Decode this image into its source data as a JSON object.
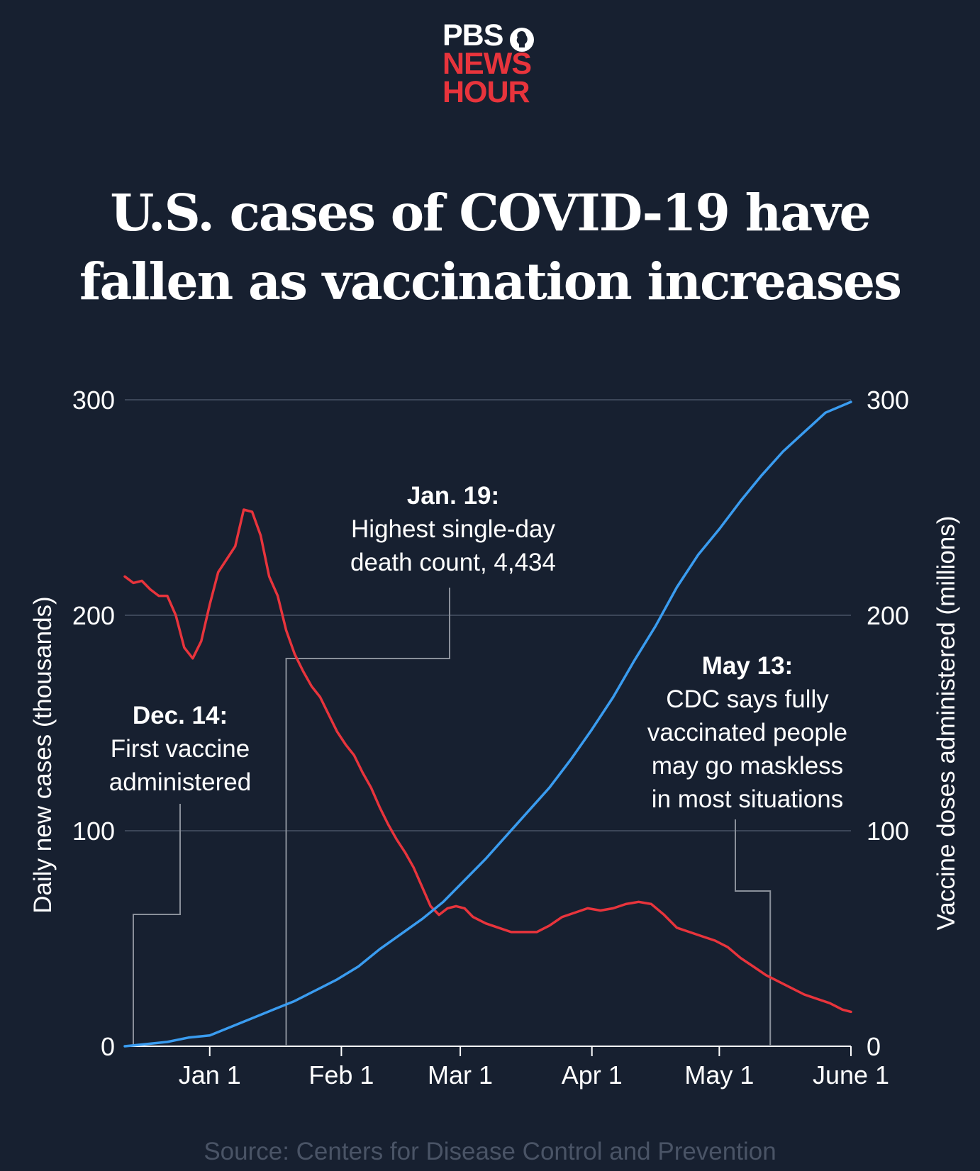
{
  "logo": {
    "line1": "PBS",
    "line2": "NEWS",
    "line3": "HOUR"
  },
  "title_line1": "U.S. cases of COVID-19 have",
  "title_line2": "fallen as vaccination increases",
  "source": "Source: Centers for Disease Control and Prevention",
  "colors": {
    "background": "#172030",
    "cases": "#e8343c",
    "vaccines": "#3a9cf0",
    "grid": "#3c4658",
    "connector": "#8a909a",
    "logo_red": "#e8343c"
  },
  "chart_data": {
    "type": "line",
    "x_tick_labels": [
      "Jan 1",
      "Feb 1",
      "Mar 1",
      "Apr 1",
      "May 1",
      "June 1"
    ],
    "x_ticks": [
      "2021-01-01",
      "2021-02-01",
      "2021-03-01",
      "2021-04-01",
      "2021-05-01",
      "2021-06-01"
    ],
    "x_range": [
      "2020-12-12",
      "2021-06-01"
    ],
    "ylabel_left": "Daily new cases (thousands)",
    "ylabel_right": "Vaccine doses administered (millions)",
    "ylim_left": [
      0,
      300
    ],
    "ylim_right": [
      0,
      300
    ],
    "y_ticks": [
      0,
      100,
      200,
      300
    ],
    "grid": true,
    "series": [
      {
        "axis": "left",
        "points": [
          [
            "2020-12-12",
            218
          ],
          [
            "2020-12-14",
            215
          ],
          [
            "2020-12-16",
            216
          ],
          [
            "2020-12-18",
            212
          ],
          [
            "2020-12-20",
            209
          ],
          [
            "2020-12-22",
            209
          ],
          [
            "2020-12-24",
            200
          ],
          [
            "2020-12-26",
            185
          ],
          [
            "2020-12-28",
            180
          ],
          [
            "2020-12-30",
            188
          ],
          [
            "2021-01-01",
            205
          ],
          [
            "2021-01-03",
            220
          ],
          [
            "2021-01-05",
            226
          ],
          [
            "2021-01-07",
            232
          ],
          [
            "2021-01-09",
            249
          ],
          [
            "2021-01-11",
            248
          ],
          [
            "2021-01-13",
            237
          ],
          [
            "2021-01-15",
            218
          ],
          [
            "2021-01-17",
            209
          ],
          [
            "2021-01-19",
            193
          ],
          [
            "2021-01-21",
            182
          ],
          [
            "2021-01-23",
            174
          ],
          [
            "2021-01-25",
            167
          ],
          [
            "2021-01-27",
            162
          ],
          [
            "2021-01-29",
            154
          ],
          [
            "2021-01-31",
            146
          ],
          [
            "2021-02-02",
            140
          ],
          [
            "2021-02-04",
            135
          ],
          [
            "2021-02-06",
            127
          ],
          [
            "2021-02-08",
            120
          ],
          [
            "2021-02-10",
            111
          ],
          [
            "2021-02-12",
            103
          ],
          [
            "2021-02-14",
            96
          ],
          [
            "2021-02-16",
            90
          ],
          [
            "2021-02-18",
            83
          ],
          [
            "2021-02-20",
            74
          ],
          [
            "2021-02-22",
            65
          ],
          [
            "2021-02-24",
            61
          ],
          [
            "2021-02-26",
            64
          ],
          [
            "2021-02-28",
            65
          ],
          [
            "2021-03-02",
            64
          ],
          [
            "2021-03-04",
            60
          ],
          [
            "2021-03-07",
            57
          ],
          [
            "2021-03-10",
            55
          ],
          [
            "2021-03-13",
            53
          ],
          [
            "2021-03-16",
            53
          ],
          [
            "2021-03-19",
            53
          ],
          [
            "2021-03-22",
            56
          ],
          [
            "2021-03-25",
            60
          ],
          [
            "2021-03-28",
            62
          ],
          [
            "2021-03-31",
            64
          ],
          [
            "2021-04-03",
            63
          ],
          [
            "2021-04-06",
            64
          ],
          [
            "2021-04-09",
            66
          ],
          [
            "2021-04-12",
            67
          ],
          [
            "2021-04-15",
            66
          ],
          [
            "2021-04-18",
            61
          ],
          [
            "2021-04-21",
            55
          ],
          [
            "2021-04-24",
            53
          ],
          [
            "2021-04-27",
            51
          ],
          [
            "2021-04-30",
            49
          ],
          [
            "2021-05-03",
            46
          ],
          [
            "2021-05-06",
            41
          ],
          [
            "2021-05-09",
            37
          ],
          [
            "2021-05-12",
            33
          ],
          [
            "2021-05-15",
            30
          ],
          [
            "2021-05-18",
            27
          ],
          [
            "2021-05-21",
            24
          ],
          [
            "2021-05-24",
            22
          ],
          [
            "2021-05-27",
            20
          ],
          [
            "2021-05-30",
            17
          ],
          [
            "2021-06-01",
            16
          ]
        ]
      },
      {
        "axis": "right",
        "points": [
          [
            "2020-12-12",
            0
          ],
          [
            "2020-12-17",
            1
          ],
          [
            "2020-12-22",
            2
          ],
          [
            "2020-12-27",
            4
          ],
          [
            "2021-01-01",
            5
          ],
          [
            "2021-01-06",
            9
          ],
          [
            "2021-01-11",
            13
          ],
          [
            "2021-01-16",
            17
          ],
          [
            "2021-01-21",
            21
          ],
          [
            "2021-01-26",
            26
          ],
          [
            "2021-01-31",
            31
          ],
          [
            "2021-02-05",
            37
          ],
          [
            "2021-02-10",
            45
          ],
          [
            "2021-02-15",
            52
          ],
          [
            "2021-02-20",
            59
          ],
          [
            "2021-02-25",
            67
          ],
          [
            "2021-03-02",
            77
          ],
          [
            "2021-03-07",
            87
          ],
          [
            "2021-03-12",
            98
          ],
          [
            "2021-03-17",
            109
          ],
          [
            "2021-03-22",
            120
          ],
          [
            "2021-03-27",
            133
          ],
          [
            "2021-04-01",
            147
          ],
          [
            "2021-04-06",
            162
          ],
          [
            "2021-04-11",
            179
          ],
          [
            "2021-04-16",
            195
          ],
          [
            "2021-04-21",
            213
          ],
          [
            "2021-04-26",
            228
          ],
          [
            "2021-05-01",
            240
          ],
          [
            "2021-05-06",
            253
          ],
          [
            "2021-05-11",
            265
          ],
          [
            "2021-05-16",
            276
          ],
          [
            "2021-05-21",
            285
          ],
          [
            "2021-05-26",
            294
          ],
          [
            "2021-06-01",
            299
          ]
        ]
      }
    ],
    "annotations": [
      {
        "date_line": "Dec. 14:",
        "text": [
          "First vaccine",
          "administered"
        ],
        "date": "2020-12-14"
      },
      {
        "date_line": "Jan. 19:",
        "text": [
          "Highest single-day",
          "death count, 4,434"
        ],
        "date": "2021-01-19"
      },
      {
        "date_line": "May 13:",
        "text": [
          "CDC says fully",
          "vaccinated people",
          "may go maskless",
          "in most situations"
        ],
        "date": "2021-05-13"
      }
    ]
  }
}
